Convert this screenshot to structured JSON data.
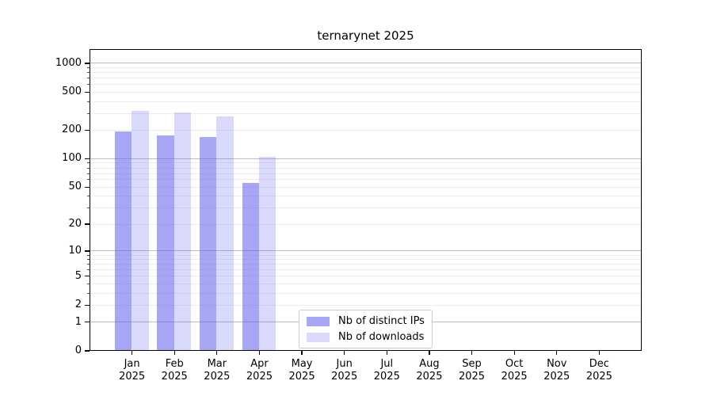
{
  "chart_data": {
    "type": "bar",
    "title": "ternarynet 2025",
    "categories": [
      "Jan 2025",
      "Feb 2025",
      "Mar 2025",
      "Apr 2025",
      "May 2025",
      "Jun 2025",
      "Jul 2025",
      "Aug 2025",
      "Sep 2025",
      "Oct 2025",
      "Nov 2025",
      "Dec 2025"
    ],
    "series": [
      {
        "name": "Nb of distinct IPs",
        "color": "#6666ee",
        "alpha": 0.58,
        "values": [
          192,
          176,
          168,
          56,
          null,
          null,
          null,
          null,
          null,
          null,
          null,
          null
        ]
      },
      {
        "name": "Nb of downloads",
        "color": "#6666ee",
        "alpha": 0.25,
        "values": [
          316,
          309,
          277,
          105,
          null,
          null,
          null,
          null,
          null,
          null,
          null,
          null
        ]
      }
    ],
    "yscale": "log10(1+v)",
    "ylim": [
      0,
      1408
    ],
    "yticks": [
      0,
      1,
      2,
      5,
      10,
      20,
      50,
      100,
      200,
      500,
      1000
    ],
    "grid": true,
    "legend_position": "lower center (inside plot)",
    "colors": {
      "bar_fill_opaque_equivalent": "#a7a7f5",
      "bar_fill_light_equivalent": "#d9d9fa",
      "grid_major": "#bdbdbd",
      "grid_minor": "#ededed",
      "spine": "#000000",
      "legend_border": "#cccccc"
    }
  }
}
